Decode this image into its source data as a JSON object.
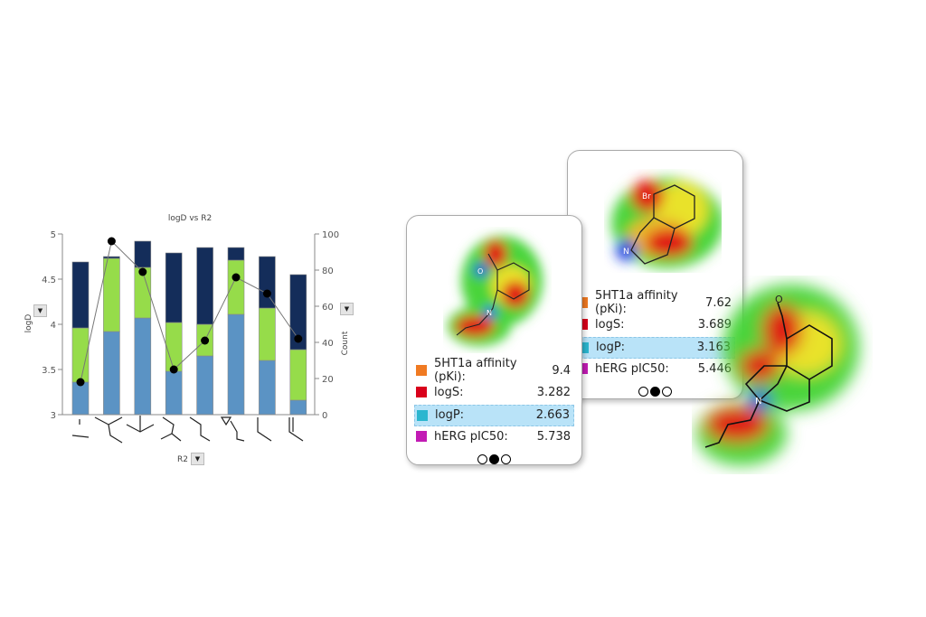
{
  "chart_data": {
    "type": "bar",
    "stacked": true,
    "title": "logD vs  R2",
    "xlabel": "R2",
    "ylabel": "logD",
    "y2label": "Count",
    "ylim": [
      3,
      5
    ],
    "y2lim": [
      0,
      100
    ],
    "yticks": [
      "5",
      "4.5",
      "4",
      "3.5",
      "3"
    ],
    "y2ticks": [
      "100",
      "80",
      "60",
      "40",
      "20",
      "0"
    ],
    "categories": [
      "nitro",
      "isopropylthio",
      "isopropyl",
      "methyl carbonate",
      "ethoxy",
      "cyclopropylmethoxy",
      "propyl",
      "allyl"
    ],
    "bar_levels_logD": {
      "lower": [
        3.36,
        3.92,
        4.07,
        3.48,
        3.65,
        4.11,
        3.6,
        3.16
      ],
      "middle": [
        3.96,
        4.73,
        4.63,
        4.02,
        4.0,
        4.71,
        4.18,
        3.72
      ],
      "upper": [
        4.69,
        4.75,
        4.92,
        4.79,
        4.85,
        4.85,
        4.75,
        4.55
      ]
    },
    "segment_colors": [
      "#5b93c4",
      "#96dc4a",
      "#142d5a"
    ],
    "line_series": {
      "axis": "Count",
      "values": [
        18,
        96,
        79,
        25,
        41,
        76,
        67,
        42
      ],
      "color": "#000000"
    },
    "grid": false
  },
  "cards": [
    {
      "rows": [
        {
          "label": "5HT1a affinity (pKi):",
          "value": "9.4",
          "color": "#f07a22"
        },
        {
          "label": "logS:",
          "value": "3.282",
          "color": "#d9001b"
        },
        {
          "label": "logP:",
          "value": "2.663",
          "color": "#2bb6cf",
          "highlighted": true
        },
        {
          "label": "hERG pIC50:",
          "value": "5.738",
          "color": "#c21bb4"
        }
      ],
      "page": 2,
      "pages": 3,
      "atom_labels": [
        "O",
        "N"
      ]
    },
    {
      "rows": [
        {
          "label": "5HT1a affinity (pKi):",
          "value": "7.62",
          "color": "#f07a22"
        },
        {
          "label": "logS:",
          "value": "3.689",
          "color": "#d9001b"
        },
        {
          "label": "logP:",
          "value": "3.163",
          "color": "#2bb6cf",
          "highlighted": true
        },
        {
          "label": "hERG pIC50:",
          "value": "5.446",
          "color": "#c21bb4"
        }
      ],
      "page": 2,
      "pages": 3,
      "atom_labels": [
        "Br",
        "N"
      ]
    }
  ],
  "big_molecule": {
    "atom_labels": [
      "O",
      "N"
    ]
  }
}
